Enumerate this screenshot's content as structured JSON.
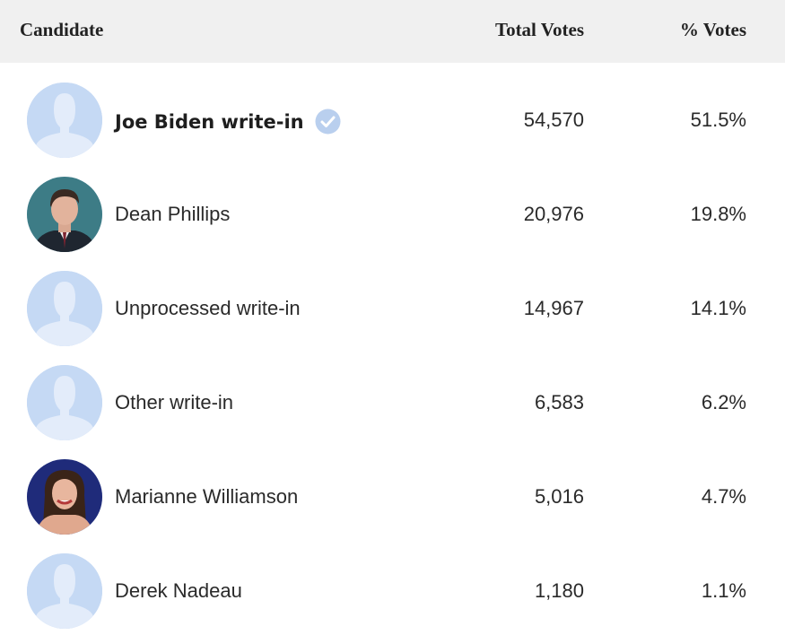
{
  "header": {
    "candidate": "Candidate",
    "total_votes": "Total Votes",
    "pct_votes": "% Votes"
  },
  "rows": [
    {
      "name": "Joe Biden write-in",
      "votes": "54,570",
      "pct": "51.5%",
      "winner": true,
      "avatar": "placeholder-avatar-icon"
    },
    {
      "name": "Dean Phillips",
      "votes": "20,976",
      "pct": "19.8%",
      "winner": false,
      "avatar": "photo"
    },
    {
      "name": "Unprocessed write-in",
      "votes": "14,967",
      "pct": "14.1%",
      "winner": false,
      "avatar": "placeholder-avatar-icon"
    },
    {
      "name": "Other write-in",
      "votes": "6,583",
      "pct": "6.2%",
      "winner": false,
      "avatar": "placeholder-avatar-icon"
    },
    {
      "name": "Marianne Williamson",
      "votes": "5,016",
      "pct": "4.7%",
      "winner": false,
      "avatar": "photo"
    },
    {
      "name": "Derek Nadeau",
      "votes": "1,180",
      "pct": "1.1%",
      "winner": false,
      "avatar": "placeholder-avatar-icon"
    }
  ],
  "colors": {
    "header_bg": "#f0f0f0",
    "avatar_bg": "#c5d9f4",
    "avatar_figure": "#e3ecfa",
    "check": "#b9cfee"
  }
}
